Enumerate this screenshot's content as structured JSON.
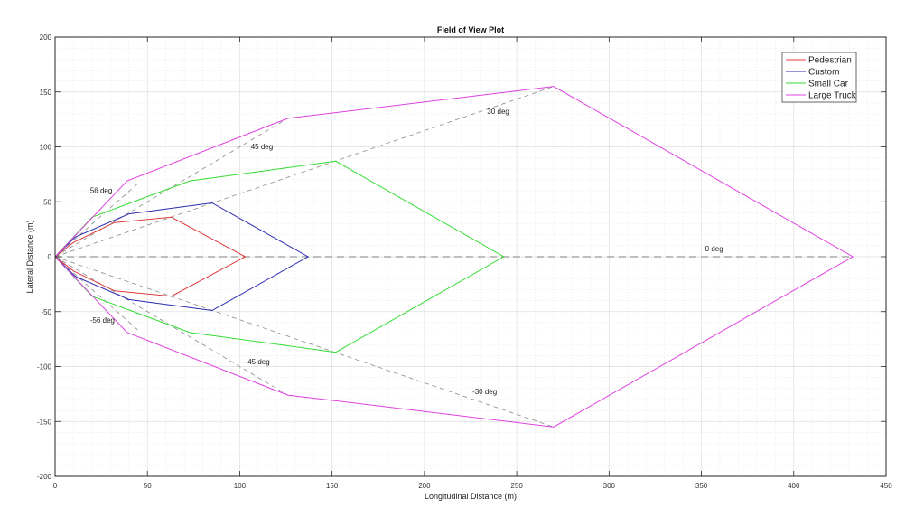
{
  "chart_data": {
    "type": "line",
    "title": "Field of View Plot",
    "xlabel": "Longitudinal Distance (m)",
    "ylabel": "Lateral Distance (m)",
    "xlim": [
      0,
      450
    ],
    "ylim": [
      -200,
      200
    ],
    "xticks": [
      0,
      50,
      100,
      150,
      200,
      250,
      300,
      350,
      400,
      450
    ],
    "yticks": [
      -200,
      -150,
      -100,
      -50,
      0,
      50,
      100,
      150,
      200
    ],
    "grid": true,
    "minor_grid": true,
    "legend_position": "upper right",
    "series": [
      {
        "name": "Pedestrian",
        "color": "#e03a3a",
        "x": [
          10,
          32,
          63,
          103,
          63,
          32,
          10
        ],
        "y": [
          13,
          31,
          36,
          0,
          -36,
          -31,
          -13
        ]
      },
      {
        "name": "Custom",
        "color": "#2a2ab0",
        "x": [
          11,
          40,
          85,
          137,
          85,
          40,
          11
        ],
        "y": [
          18,
          39,
          49,
          0,
          -49,
          -39,
          -18
        ]
      },
      {
        "name": "Small Car",
        "color": "#33dd33",
        "x": [
          20,
          73,
          152,
          243,
          152,
          73,
          20
        ],
        "y": [
          36,
          69,
          87,
          0,
          -87,
          -69,
          -36
        ]
      },
      {
        "name": "Large Truck",
        "color": "#e040e0",
        "x": [
          39,
          126,
          270,
          432,
          270,
          126,
          39
        ],
        "y": [
          69,
          126,
          155,
          0,
          -155,
          -126,
          -69
        ]
      }
    ],
    "reference_lines": [
      {
        "label": "56 deg",
        "angle_deg": 56,
        "end": [
          45,
          67
        ]
      },
      {
        "label": "45 deg",
        "angle_deg": 45,
        "end": [
          126,
          126
        ]
      },
      {
        "label": "30 deg",
        "angle_deg": 30,
        "end": [
          270,
          155
        ]
      },
      {
        "label": "0 deg",
        "angle_deg": 0,
        "end": [
          432,
          0
        ]
      },
      {
        "label": "-30 deg",
        "angle_deg": -30,
        "end": [
          270,
          -155
        ]
      },
      {
        "label": "-45 deg",
        "angle_deg": -45,
        "end": [
          126,
          -126
        ]
      },
      {
        "label": "-56 deg",
        "angle_deg": -56,
        "end": [
          45,
          -67
        ]
      }
    ],
    "annotations": [
      {
        "text": "56 deg",
        "x": 19,
        "y": 58
      },
      {
        "text": "45 deg",
        "x": 106,
        "y": 98
      },
      {
        "text": "30 deg",
        "x": 234,
        "y": 130
      },
      {
        "text": "0 deg",
        "x": 352,
        "y": 5
      },
      {
        "text": "-30 deg",
        "x": 226,
        "y": -125
      },
      {
        "text": "-45 deg",
        "x": 103,
        "y": -98
      },
      {
        "text": "-56 deg",
        "x": 19,
        "y": -60
      }
    ]
  }
}
